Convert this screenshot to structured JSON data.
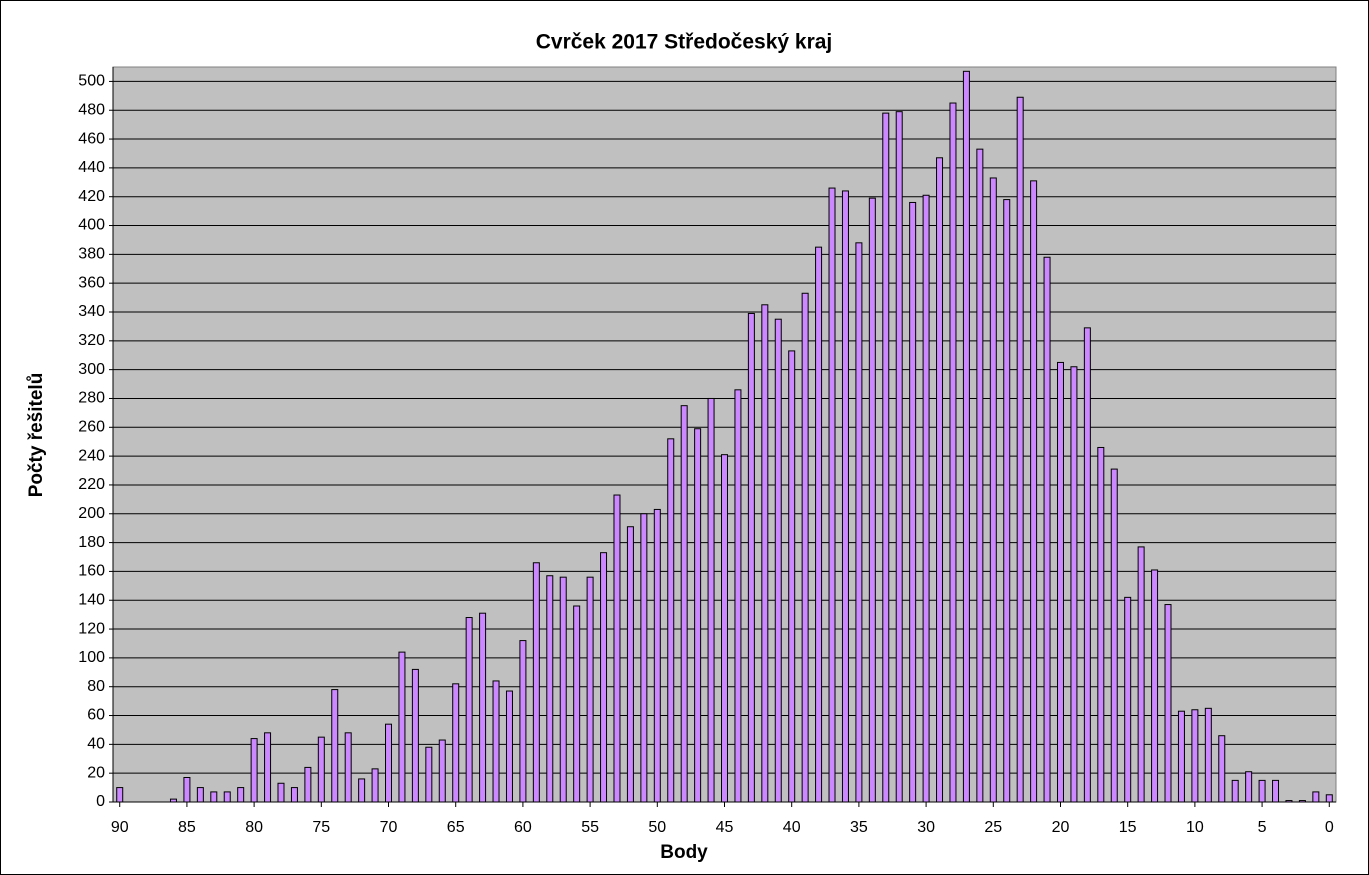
{
  "chart_data": {
    "type": "bar",
    "title": "Cvrček 2017 Středočeský kraj",
    "x_label": "Body",
    "y_label": "Počty řešitelů",
    "categories": [
      90,
      null,
      null,
      null,
      null,
      85,
      null,
      null,
      null,
      null,
      80,
      null,
      null,
      null,
      null,
      75,
      null,
      null,
      null,
      null,
      70,
      null,
      null,
      null,
      null,
      65,
      null,
      null,
      null,
      null,
      60,
      null,
      null,
      null,
      null,
      55,
      null,
      null,
      null,
      null,
      50,
      null,
      null,
      null,
      null,
      45,
      null,
      null,
      null,
      null,
      40,
      null,
      null,
      null,
      null,
      35,
      null,
      null,
      null,
      null,
      30,
      null,
      null,
      null,
      null,
      25,
      null,
      null,
      null,
      null,
      20,
      null,
      null,
      null,
      null,
      15,
      null,
      null,
      null,
      null,
      10,
      null,
      null,
      null,
      null,
      5,
      null,
      null,
      null,
      null,
      0
    ],
    "values": [
      10,
      0,
      0,
      0,
      2,
      17,
      10,
      7,
      7,
      10,
      44,
      48,
      13,
      10,
      24,
      45,
      78,
      48,
      16,
      23,
      54,
      104,
      92,
      38,
      43,
      82,
      128,
      131,
      84,
      77,
      112,
      166,
      157,
      156,
      136,
      156,
      173,
      213,
      191,
      200,
      203,
      252,
      275,
      259,
      280,
      241,
      286,
      339,
      345,
      335,
      313,
      353,
      385,
      426,
      424,
      388,
      419,
      478,
      479,
      416,
      421,
      447,
      485,
      507,
      453,
      433,
      418,
      489,
      431,
      378,
      305,
      302,
      329,
      246,
      231,
      142,
      177,
      161,
      137,
      63,
      64,
      65,
      46,
      15,
      21,
      15,
      15,
      1,
      1,
      7,
      5
    ],
    "color": "#cc88ff",
    "ylim": [
      0,
      510
    ],
    "yticks": [
      0,
      20,
      40,
      60,
      80,
      100,
      120,
      140,
      160,
      180,
      200,
      220,
      240,
      260,
      280,
      300,
      320,
      340,
      360,
      380,
      400,
      420,
      440,
      460,
      480,
      500
    ],
    "grid": true
  }
}
